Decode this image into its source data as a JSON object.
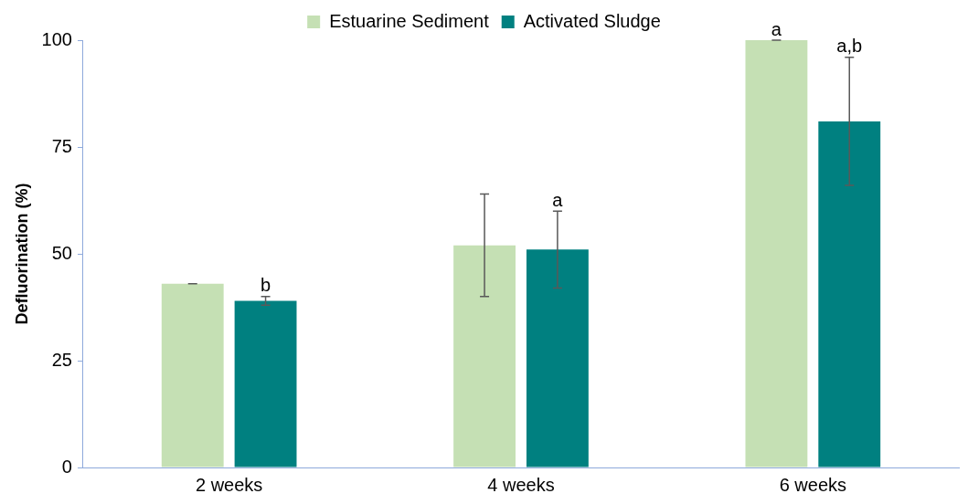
{
  "chart_data": {
    "type": "bar",
    "ylabel": "Defluorination (%)",
    "categories": [
      "2 weeks",
      "4 weeks",
      "6 weeks"
    ],
    "series": [
      {
        "name": "Estuarine Sediment",
        "color": "#c5e0b4",
        "values": [
          43,
          52,
          100
        ],
        "errors": [
          0,
          12,
          0
        ]
      },
      {
        "name": "Activated Sludge",
        "color": "#008080",
        "values": [
          39,
          51,
          81
        ],
        "errors": [
          1,
          9,
          15
        ]
      }
    ],
    "ylim": [
      0,
      100
    ],
    "yticks": [
      0,
      25,
      50,
      75,
      100
    ],
    "grid": false,
    "legend": "top",
    "annotations": [
      "b",
      "a",
      "a",
      "a,b"
    ]
  }
}
